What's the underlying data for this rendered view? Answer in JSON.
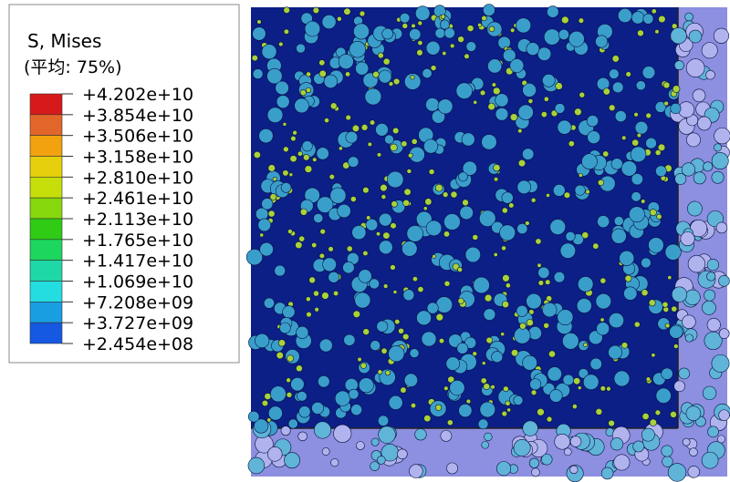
{
  "legend": {
    "title": "S, Mises",
    "subtitle": "(平均: 75%)",
    "labels": [
      "+4.202e+10",
      "+3.854e+10",
      "+3.506e+10",
      "+3.158e+10",
      "+2.810e+10",
      "+2.461e+10",
      "+2.113e+10",
      "+1.765e+10",
      "+1.417e+10",
      "+1.069e+10",
      "+7.208e+09",
      "+3.727e+09",
      "+2.454e+08"
    ],
    "colors": [
      "#d61a1a",
      "#e2662a",
      "#f2a20e",
      "#e6cf0c",
      "#c6df0a",
      "#86d80c",
      "#2fcb15",
      "#1cd65e",
      "#1fd8a8",
      "#24dde0",
      "#1a9ee2",
      "#1559e2",
      "#0a22f0"
    ]
  }
}
